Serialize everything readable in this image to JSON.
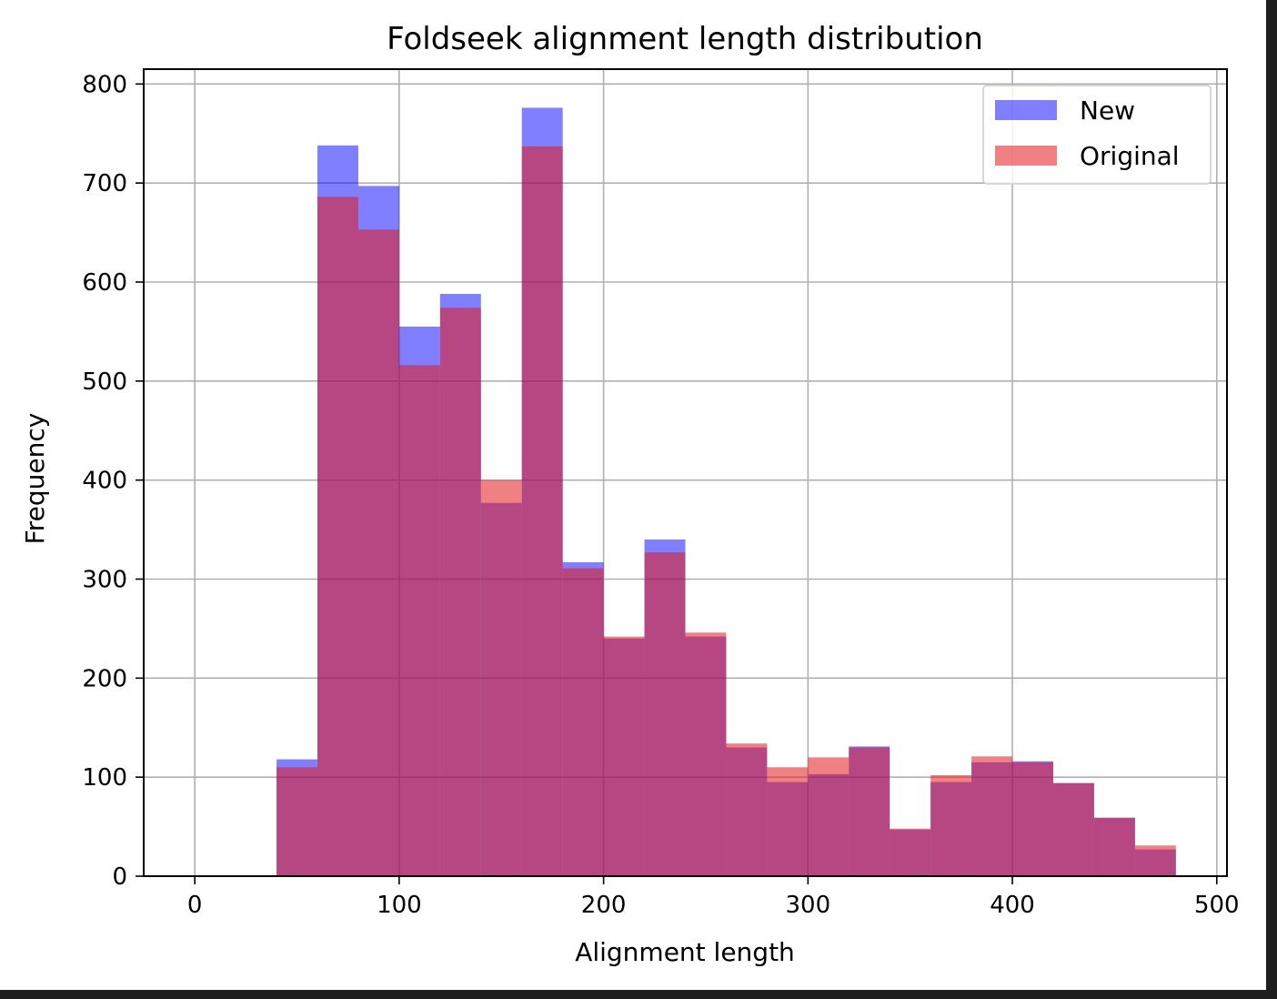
{
  "chart_data": {
    "type": "bar",
    "title": "Foldseek alignment length distribution",
    "xlabel": "Alignment length",
    "ylabel": "Frequency",
    "xlim": [
      -25,
      505
    ],
    "ylim": [
      0,
      815
    ],
    "xticks": [
      0,
      100,
      200,
      300,
      400,
      500
    ],
    "yticks": [
      0,
      100,
      200,
      300,
      400,
      500,
      600,
      700,
      800
    ],
    "grid": true,
    "legend": "top-right",
    "bin_edges": [
      40,
      60,
      80,
      100,
      120,
      140,
      160,
      180,
      200,
      220,
      240,
      260,
      280,
      300,
      320,
      340,
      360,
      380,
      400,
      420,
      440,
      460,
      480
    ],
    "series": [
      {
        "name": "New",
        "color": "#0000ff",
        "opacity": 0.5,
        "values": [
          118,
          738,
          697,
          555,
          588,
          377,
          776,
          317,
          240,
          340,
          242,
          130,
          95,
          103,
          131,
          47,
          95,
          115,
          116,
          94,
          59,
          27
        ]
      },
      {
        "name": "Original",
        "color": "#e41a1c",
        "opacity": 0.55,
        "values": [
          110,
          686,
          653,
          516,
          574,
          400,
          737,
          311,
          242,
          327,
          246,
          134,
          110,
          120,
          130,
          48,
          102,
          121,
          115,
          94,
          59,
          31
        ]
      }
    ]
  }
}
